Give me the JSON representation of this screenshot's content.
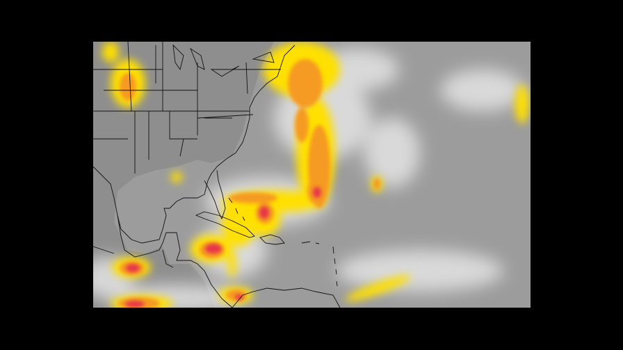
{
  "image": {
    "kind": "infrared satellite imagery",
    "colors": {
      "background": "#000000",
      "clear_sky": "#9a9a9a",
      "cloud": "#e8e8e8",
      "cold_top_yellow": "#ffe000",
      "cold_top_orange": "#f59a20",
      "cold_top_red": "#e8344a",
      "coastline": "#111111"
    }
  }
}
